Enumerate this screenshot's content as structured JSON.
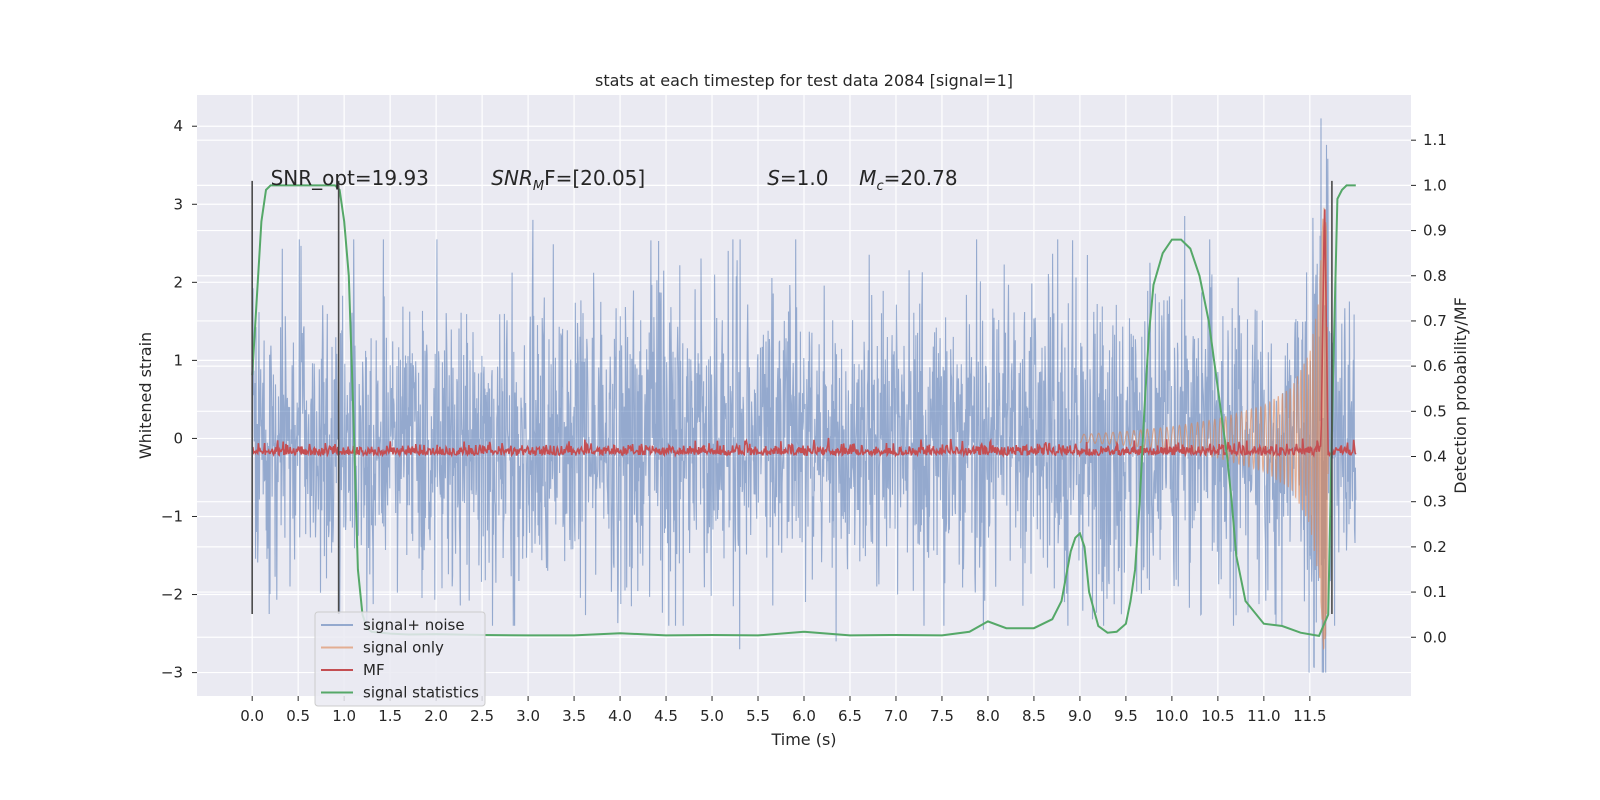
{
  "chart_data": {
    "type": "line",
    "title": "stats at each timestep for test data 2084 [signal=1]",
    "xlabel": "Time (s)",
    "ylabel": "Whitened strain",
    "ylabel_right": "Detection probability/MF",
    "xlim": [
      -0.6,
      12.6
    ],
    "ylim": [
      -3.3,
      4.4
    ],
    "ylim_right": [
      -0.13,
      1.2
    ],
    "x_ticks": [
      "0.0",
      "0.5",
      "1.0",
      "1.5",
      "2.0",
      "2.5",
      "3.0",
      "3.5",
      "4.0",
      "4.5",
      "5.0",
      "5.5",
      "6.0",
      "6.5",
      "7.0",
      "7.5",
      "8.0",
      "8.5",
      "9.0",
      "9.5",
      "10.0",
      "10.5",
      "11.0",
      "11.5"
    ],
    "y_ticks": [
      "4",
      "3",
      "2",
      "1",
      "0",
      "−1",
      "−2",
      "−3"
    ],
    "y_ticks_right": [
      "1.1",
      "1.0",
      "0.9",
      "0.8",
      "0.7",
      "0.6",
      "0.5",
      "0.4",
      "0.3",
      "0.2",
      "0.1",
      "0.0"
    ],
    "grid": true,
    "legend_position": "lower-left",
    "annotations": [
      {
        "text": "SNR_opt=19.93",
        "x": 0.2
      },
      {
        "text_main": "SNR",
        "text_sub": "M",
        "text_rest": "F=[20.05]",
        "x": 2.6
      },
      {
        "text_main": "S",
        "text_rest": "=1.0",
        "x": 5.6
      },
      {
        "text_main": "M",
        "text_sub": "c",
        "text_rest": "=20.78",
        "x": 6.6
      }
    ],
    "vlines": [
      {
        "x": 0.0,
        "ymin": -2.25,
        "ymax": 3.3
      },
      {
        "x": 0.94,
        "ymin": -2.25,
        "ymax": 3.3
      },
      {
        "x": 11.74,
        "ymin": -2.25,
        "ymax": 3.3
      }
    ],
    "series": [
      {
        "name": "signal+ noise",
        "color": "#4c72b0",
        "axis": "left",
        "description": "dense whitened noise, amplitude ~±1.1 with peaks to ±2.5",
        "x_range": [
          0.0,
          12.0
        ],
        "peaks": [
          [
            11.62,
            4.1
          ],
          [
            11.65,
            -3.0
          ],
          [
            10.14,
            2.85
          ],
          [
            3.05,
            2.8
          ],
          [
            6.35,
            -2.6
          ],
          [
            5.3,
            -2.7
          ],
          [
            7.95,
            -2.45
          ],
          [
            0.95,
            -2.25
          ]
        ]
      },
      {
        "name": "signal only",
        "color": "#dd8452",
        "axis": "left",
        "description": "chirp growing in amplitude towards merger",
        "x": [
          9.0,
          9.5,
          10.0,
          10.5,
          11.0,
          11.3,
          11.5,
          11.6,
          11.65,
          11.68,
          11.7
        ],
        "envelope": [
          0.05,
          0.09,
          0.15,
          0.25,
          0.42,
          0.65,
          1.1,
          1.8,
          3.0,
          2.7,
          0.2
        ]
      },
      {
        "name": "MF",
        "color": "#c44e52",
        "axis": "right",
        "description": "matched-filter output, baseline ~0.40 with peak 0.98 at 11.66 s",
        "x_range": [
          0.0,
          12.0
        ],
        "baseline": 0.4,
        "peak": [
          11.66,
          0.98
        ]
      },
      {
        "name": "signal statistics",
        "color": "#55a868",
        "axis": "right",
        "x": [
          0.0,
          0.05,
          0.1,
          0.15,
          0.2,
          0.3,
          0.4,
          0.5,
          0.6,
          0.7,
          0.8,
          0.9,
          0.95,
          1.0,
          1.05,
          1.1,
          1.15,
          1.2,
          1.25,
          1.3,
          1.4,
          1.5,
          1.7,
          2.0,
          2.5,
          3.0,
          3.5,
          4.0,
          4.5,
          5.0,
          5.5,
          6.0,
          6.5,
          7.0,
          7.5,
          7.8,
          8.0,
          8.2,
          8.5,
          8.7,
          8.8,
          8.9,
          8.95,
          9.0,
          9.05,
          9.1,
          9.2,
          9.3,
          9.4,
          9.5,
          9.55,
          9.6,
          9.65,
          9.7,
          9.75,
          9.8,
          9.9,
          10.0,
          10.1,
          10.2,
          10.3,
          10.4,
          10.5,
          10.6,
          10.65,
          10.7,
          10.8,
          11.0,
          11.2,
          11.4,
          11.6,
          11.7,
          11.75,
          11.8,
          11.85,
          11.9,
          11.95,
          12.0
        ],
        "values": [
          0.58,
          0.75,
          0.92,
          0.99,
          1.0,
          1.0,
          1.0,
          1.0,
          1.0,
          1.0,
          1.0,
          1.0,
          0.99,
          0.92,
          0.8,
          0.5,
          0.15,
          0.05,
          0.02,
          0.012,
          0.01,
          0.008,
          0.006,
          0.007,
          0.005,
          0.004,
          0.004,
          0.009,
          0.004,
          0.005,
          0.004,
          0.012,
          0.004,
          0.005,
          0.004,
          0.012,
          0.035,
          0.02,
          0.02,
          0.04,
          0.08,
          0.19,
          0.22,
          0.23,
          0.2,
          0.1,
          0.025,
          0.01,
          0.012,
          0.03,
          0.08,
          0.15,
          0.3,
          0.5,
          0.67,
          0.78,
          0.85,
          0.88,
          0.88,
          0.86,
          0.8,
          0.7,
          0.55,
          0.4,
          0.3,
          0.18,
          0.08,
          0.03,
          0.025,
          0.01,
          0.003,
          0.05,
          0.55,
          0.97,
          0.99,
          1.0,
          1.0,
          1.0
        ]
      }
    ]
  }
}
